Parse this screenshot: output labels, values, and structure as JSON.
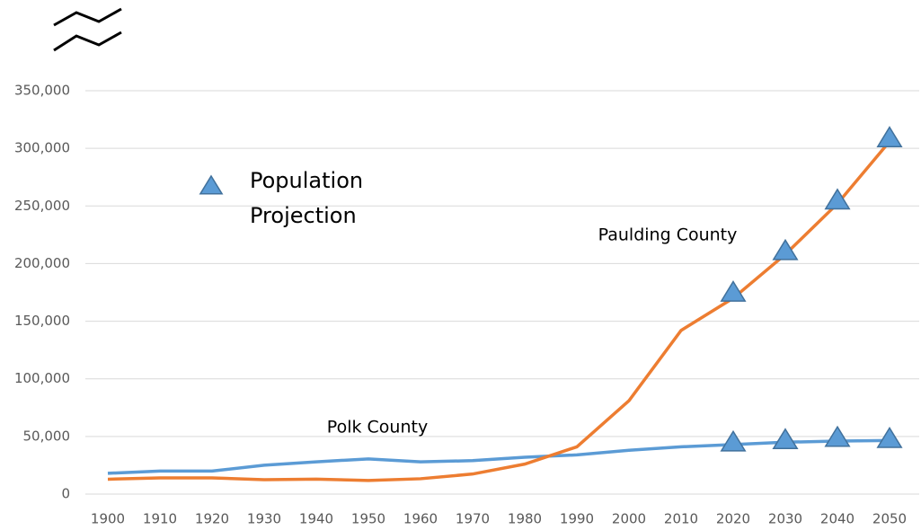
{
  "chart_data": {
    "type": "line",
    "categories": [
      "1900",
      "1910",
      "1920",
      "1930",
      "1940",
      "1950",
      "1960",
      "1970",
      "1980",
      "1990",
      "2000",
      "2010",
      "2020",
      "2030",
      "2040",
      "2050"
    ],
    "series": [
      {
        "name": "Polk County",
        "color": "#5b9bd5",
        "values": [
          18000,
          20000,
          20000,
          25000,
          28000,
          30500,
          28000,
          29000,
          32000,
          34000,
          38000,
          41000,
          43000,
          45000,
          46000,
          46500
        ]
      },
      {
        "name": "Paulding County",
        "color": "#ed7d31",
        "values": [
          12900,
          14000,
          14000,
          12500,
          13000,
          11800,
          13300,
          17400,
          26000,
          41000,
          81000,
          142000,
          170000,
          208000,
          252000,
          306000
        ]
      }
    ],
    "projection": {
      "name": "Population Projection",
      "color": "#5b9bd5",
      "x": [
        "2020",
        "2030",
        "2040",
        "2050"
      ],
      "values": [
        [
          45000,
          47000,
          49000,
          48000
        ],
        [
          175000,
          211000,
          255000,
          309000
        ]
      ]
    },
    "ylim": [
      0,
      350000
    ],
    "yticks": [
      0,
      {
        "value": 50000,
        "label": "50,000"
      },
      {
        "value": 100000,
        "label": "100,000"
      },
      {
        "value": 150000,
        "label": "150,000"
      },
      {
        "value": 200000,
        "label": "200,000"
      },
      {
        "value": 250000,
        "label": "250,000"
      },
      {
        "value": 300000,
        "label": "300,000"
      },
      {
        "value": 350000,
        "label": "350,000"
      }
    ],
    "grid": true
  }
}
